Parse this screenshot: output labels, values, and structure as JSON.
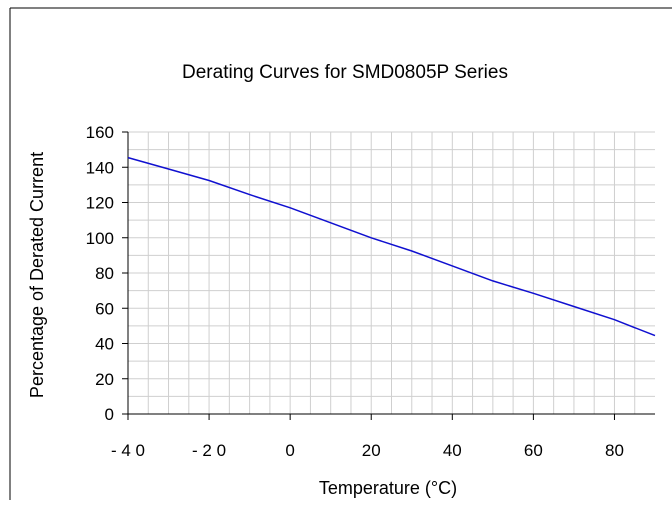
{
  "chart_data": {
    "type": "line",
    "title": "Derating Curves for SMD0805P Series",
    "xlabel": "Temperature (°C)",
    "ylabel": "Percentage of Derated Current",
    "xlim": [
      -40,
      90
    ],
    "ylim": [
      0,
      160
    ],
    "x_ticks": [
      -40,
      -20,
      0,
      20,
      40,
      60,
      80
    ],
    "x_tick_labels": [
      "- 4 0",
      "- 2 0",
      "0",
      "20",
      "40",
      "60",
      "80"
    ],
    "y_ticks": [
      0,
      20,
      40,
      60,
      80,
      100,
      120,
      140,
      160
    ],
    "y_tick_labels": [
      "0",
      "20",
      "40",
      "60",
      "80",
      "100",
      "120",
      "140",
      "160"
    ],
    "grid": true,
    "series": [
      {
        "color": "#1010d0",
        "x": [
          -40,
          -30,
          -20,
          -10,
          0,
          10,
          20,
          30,
          40,
          50,
          60,
          70,
          80,
          90
        ],
        "y": [
          145.5,
          139,
          132.5,
          124.5,
          117,
          108.5,
          100,
          92.5,
          84,
          75.5,
          68.5,
          61,
          53.5,
          44.5
        ]
      }
    ]
  }
}
